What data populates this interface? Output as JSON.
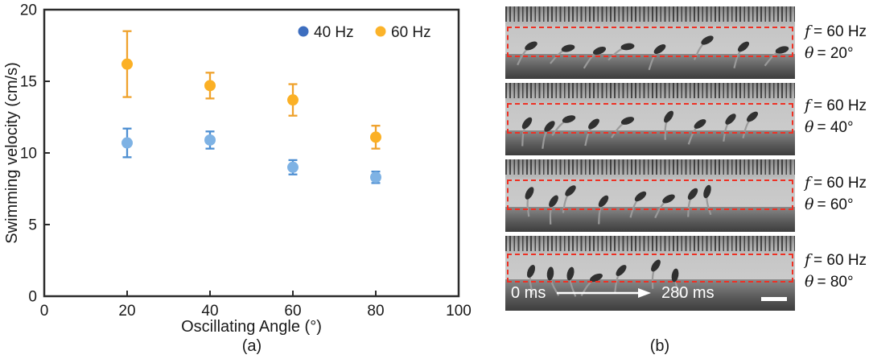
{
  "panel_a": {
    "caption": "(a)"
  },
  "chart_data": {
    "type": "scatter",
    "title": "",
    "xlabel": "Oscillating Angle (°)",
    "ylabel": "Swimming velocity (cm/s)",
    "xlim": [
      0,
      100
    ],
    "ylim": [
      0,
      20
    ],
    "xticks": [
      0,
      20,
      40,
      60,
      80,
      100
    ],
    "yticks": [
      0,
      5,
      10,
      15,
      20
    ],
    "grid": false,
    "legend_position": "top-right-inside",
    "x": [
      20,
      40,
      60,
      80
    ],
    "series": [
      {
        "name": "40 Hz",
        "values": [
          10.7,
          10.9,
          9.0,
          8.3
        ],
        "errors": [
          1.0,
          0.6,
          0.5,
          0.4
        ],
        "point_color": "#7EB2E4",
        "error_color": "#4E8FD2",
        "legend_marker_color": "#3D6EBF"
      },
      {
        "name": "60 Hz",
        "values": [
          16.2,
          14.7,
          13.7,
          11.1
        ],
        "errors": [
          2.3,
          0.9,
          1.1,
          0.8
        ],
        "point_color": "#FBB025",
        "error_color": "#EFA22C",
        "legend_marker_color": "#FBB32A"
      }
    ]
  },
  "panel_b": {
    "caption": "(b)",
    "time_start": "0 ms",
    "time_end": "280 ms",
    "red_box_color": "#ee3124",
    "strips": [
      {
        "f_label": "f",
        "f_eq": "= 60 Hz",
        "theta_label": "θ",
        "theta_eq": "= 20°",
        "robots": [
          [
            32,
            49,
            -28
          ],
          [
            78,
            52,
            -14
          ],
          [
            117,
            55,
            -22
          ],
          [
            152,
            50,
            -8
          ],
          [
            192,
            53,
            -36
          ],
          [
            251,
            42,
            -30
          ],
          [
            296,
            50,
            -40
          ],
          [
            344,
            54,
            -16
          ]
        ]
      },
      {
        "f_label": "f",
        "f_eq": "= 60 Hz",
        "theta_label": "θ",
        "theta_eq": "= 40°",
        "robots": [
          [
            27,
            50,
            -52
          ],
          [
            55,
            54,
            -46
          ],
          [
            79,
            45,
            -18
          ],
          [
            110,
            51,
            -42
          ],
          [
            152,
            47,
            -20
          ],
          [
            203,
            42,
            -55
          ],
          [
            242,
            51,
            -34
          ],
          [
            280,
            45,
            -46
          ],
          [
            307,
            42,
            -40
          ]
        ]
      },
      {
        "f_label": "f",
        "f_eq": "= 60 Hz",
        "theta_label": "θ",
        "theta_eq": "= 60°",
        "robots": [
          [
            30,
            42,
            -62
          ],
          [
            60,
            52,
            -56
          ],
          [
            81,
            39,
            -45
          ],
          [
            122,
            52,
            -52
          ],
          [
            168,
            46,
            -38
          ],
          [
            203,
            49,
            -28
          ],
          [
            233,
            43,
            -52
          ],
          [
            251,
            40,
            -72
          ]
        ]
      },
      {
        "f_label": "f",
        "f_eq": "= 60 Hz",
        "theta_label": "θ",
        "theta_eq": "= 80°",
        "robots": [
          [
            32,
            44,
            -68
          ],
          [
            56,
            47,
            -84
          ],
          [
            81,
            47,
            -76
          ],
          [
            113,
            52,
            -24
          ],
          [
            144,
            43,
            -48
          ],
          [
            187,
            37,
            -56
          ],
          [
            211,
            49,
            -80
          ]
        ]
      }
    ]
  }
}
